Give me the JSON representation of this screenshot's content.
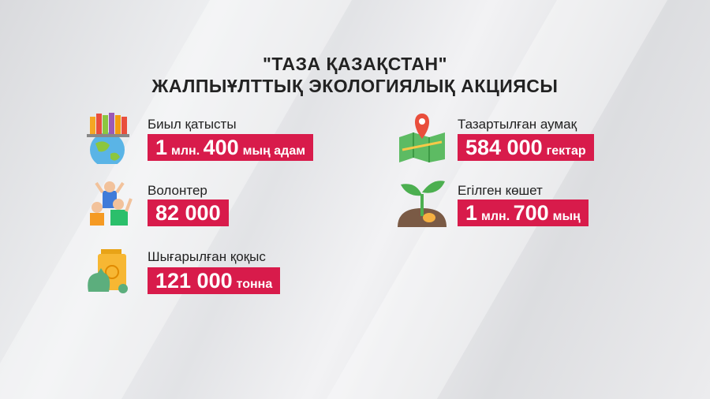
{
  "title": {
    "line1": "\"ТАЗА ҚАЗАҚСТАН\"",
    "line2": "ЖАЛПЫҰЛТТЫҚ ЭКОЛОГИЯЛЫҚ АКЦИЯСЫ"
  },
  "accent_color": "#d81b4b",
  "items": [
    {
      "label": "Биыл қатысты",
      "value_parts": [
        "1",
        "млн.",
        "400",
        "мың адам"
      ],
      "icon": "people-globe-icon"
    },
    {
      "label": "Волонтер",
      "value_parts": [
        "82 000"
      ],
      "icon": "volunteers-icon"
    },
    {
      "label": "Шығарылған қоқыс",
      "value_parts": [
        "121 000",
        "тонна"
      ],
      "icon": "trash-bin-icon"
    },
    {
      "label": "Тазартылған аумақ",
      "value_parts": [
        "584 000",
        "гектар"
      ],
      "icon": "map-pin-icon"
    },
    {
      "label": "Егілген көшет",
      "value_parts": [
        "1",
        "млн.",
        "700",
        "мың"
      ],
      "icon": "seedling-icon"
    }
  ]
}
